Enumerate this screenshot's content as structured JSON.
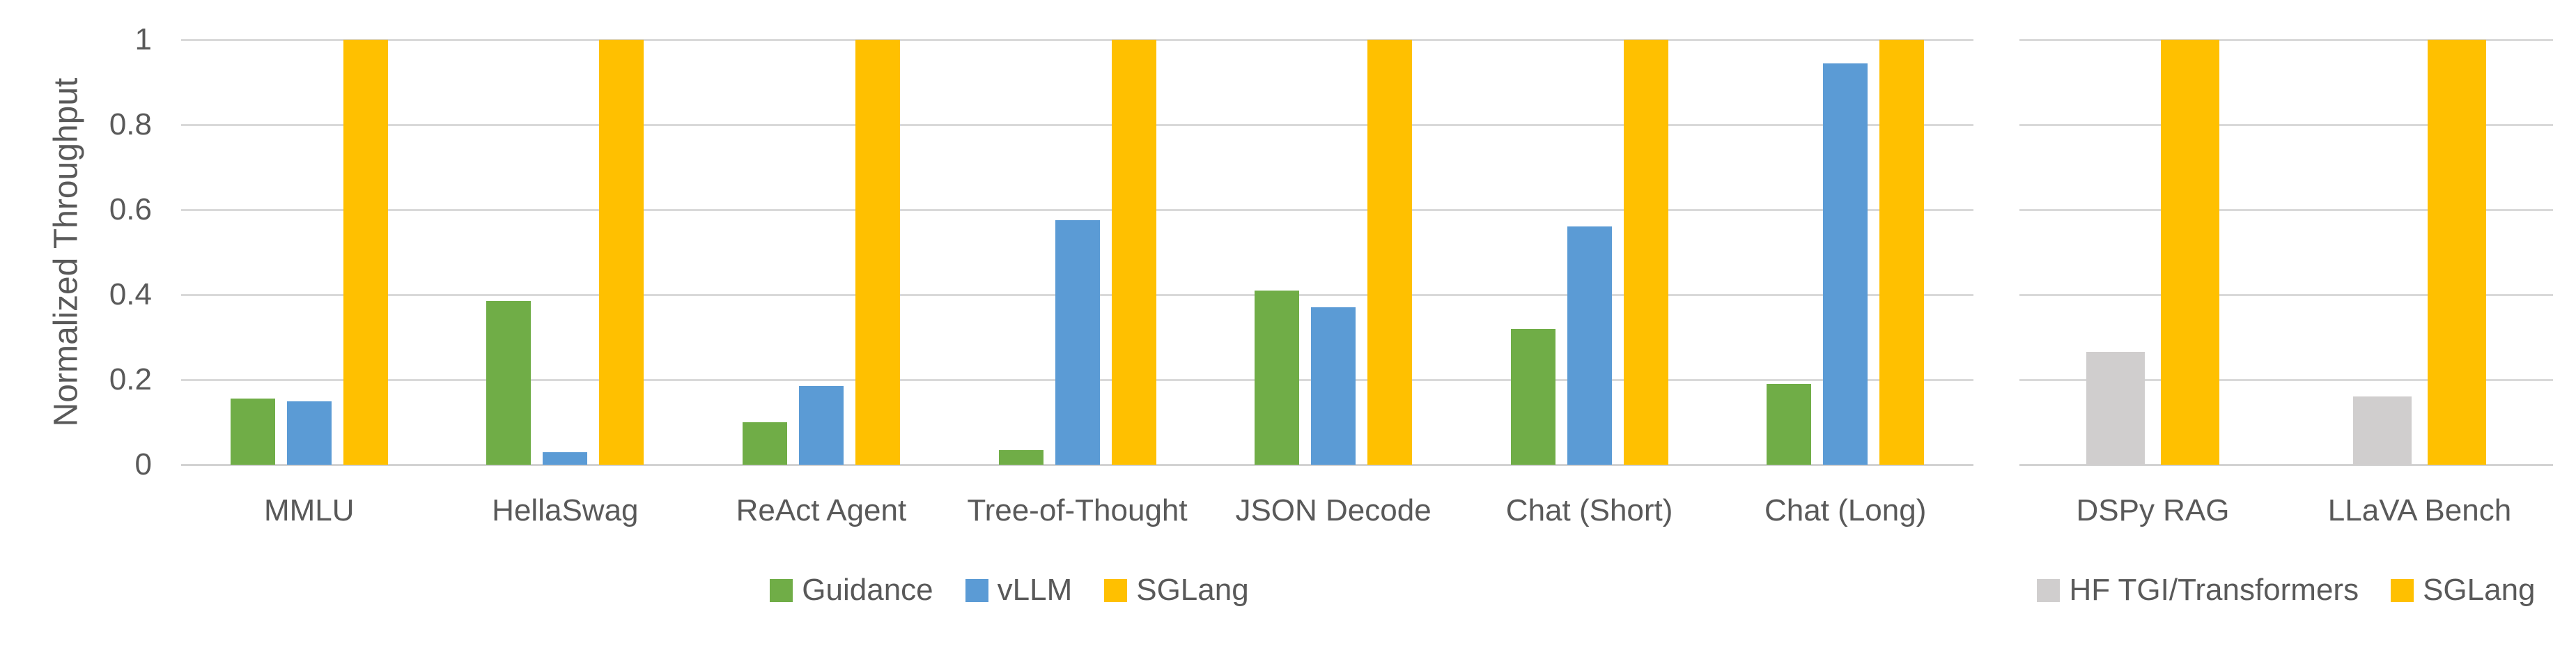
{
  "style": {
    "background": "#FFFFFF",
    "grid_color": "#D9D9D9",
    "axis_line_color": "#D2D2D2",
    "text_color": "#595959"
  },
  "chart_data": [
    {
      "type": "bar",
      "title": "",
      "ylabel": "Normalized Throughput",
      "xlabel": "",
      "ylim": [
        0,
        1
      ],
      "yticks": [
        1,
        0.8,
        0.6,
        0.4,
        0.2,
        0
      ],
      "ytick_labels": [
        "1",
        "0.8",
        "0.6",
        "0.4",
        "0.2",
        "0"
      ],
      "grid": true,
      "legend_position": "bottom",
      "categories": [
        "MMLU",
        "HellaSwag",
        "ReAct Agent",
        "Tree-of-Thought",
        "JSON Decode",
        "Chat (Short)",
        "Chat (Long)"
      ],
      "series": [
        {
          "name": "Guidance",
          "color": "#70AD47",
          "values": [
            0.155,
            0.385,
            0.1,
            0.035,
            0.41,
            0.32,
            0.19
          ]
        },
        {
          "name": "vLLM",
          "color": "#5B9BD5",
          "values": [
            0.15,
            0.03,
            0.185,
            0.575,
            0.37,
            0.56,
            0.945
          ]
        },
        {
          "name": "SGLang",
          "color": "#FFC000",
          "values": [
            1,
            1,
            1,
            1,
            1,
            1,
            1
          ]
        }
      ]
    },
    {
      "type": "bar",
      "title": "",
      "ylabel": "",
      "xlabel": "",
      "ylim": [
        0,
        1
      ],
      "yticks": [
        1,
        0.8,
        0.6,
        0.4,
        0.2,
        0
      ],
      "ytick_labels": [],
      "grid": true,
      "legend_position": "bottom",
      "categories": [
        "DSPy RAG",
        "LLaVA Bench"
      ],
      "series": [
        {
          "name": "HF TGI/Transformers",
          "color": "#D0CECE",
          "values": [
            0.265,
            0.16
          ]
        },
        {
          "name": "SGLang",
          "color": "#FFC000",
          "values": [
            1,
            1
          ]
        }
      ]
    }
  ]
}
